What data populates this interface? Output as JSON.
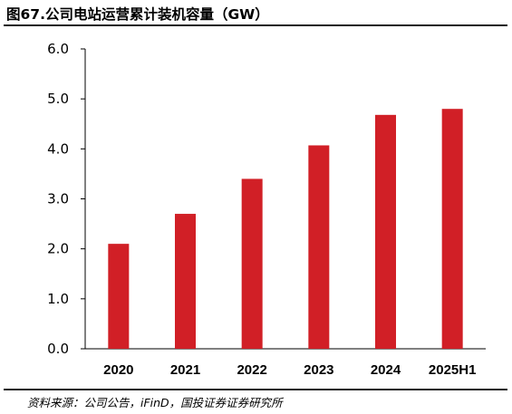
{
  "title": "图67.公司电站运营累计装机容量（GW）",
  "source": "资料来源：公司公告，iFinD，国投证券证券研究所",
  "colors": {
    "bar": "#d11f26",
    "axis": "#000000",
    "rule": "#1a1a1a"
  },
  "chart_data": {
    "type": "bar",
    "title": "公司电站运营累计装机容量（GW）",
    "categories": [
      "2020",
      "2021",
      "2022",
      "2023",
      "2024",
      "2025H1"
    ],
    "values": [
      2.1,
      2.7,
      3.4,
      4.07,
      4.68,
      4.8
    ],
    "xlabel": "",
    "ylabel": "",
    "ylim": [
      0,
      6
    ],
    "yticks": [
      "0.0",
      "1.0",
      "2.0",
      "3.0",
      "4.0",
      "5.0",
      "6.0"
    ],
    "grid": false,
    "legend": "none"
  }
}
